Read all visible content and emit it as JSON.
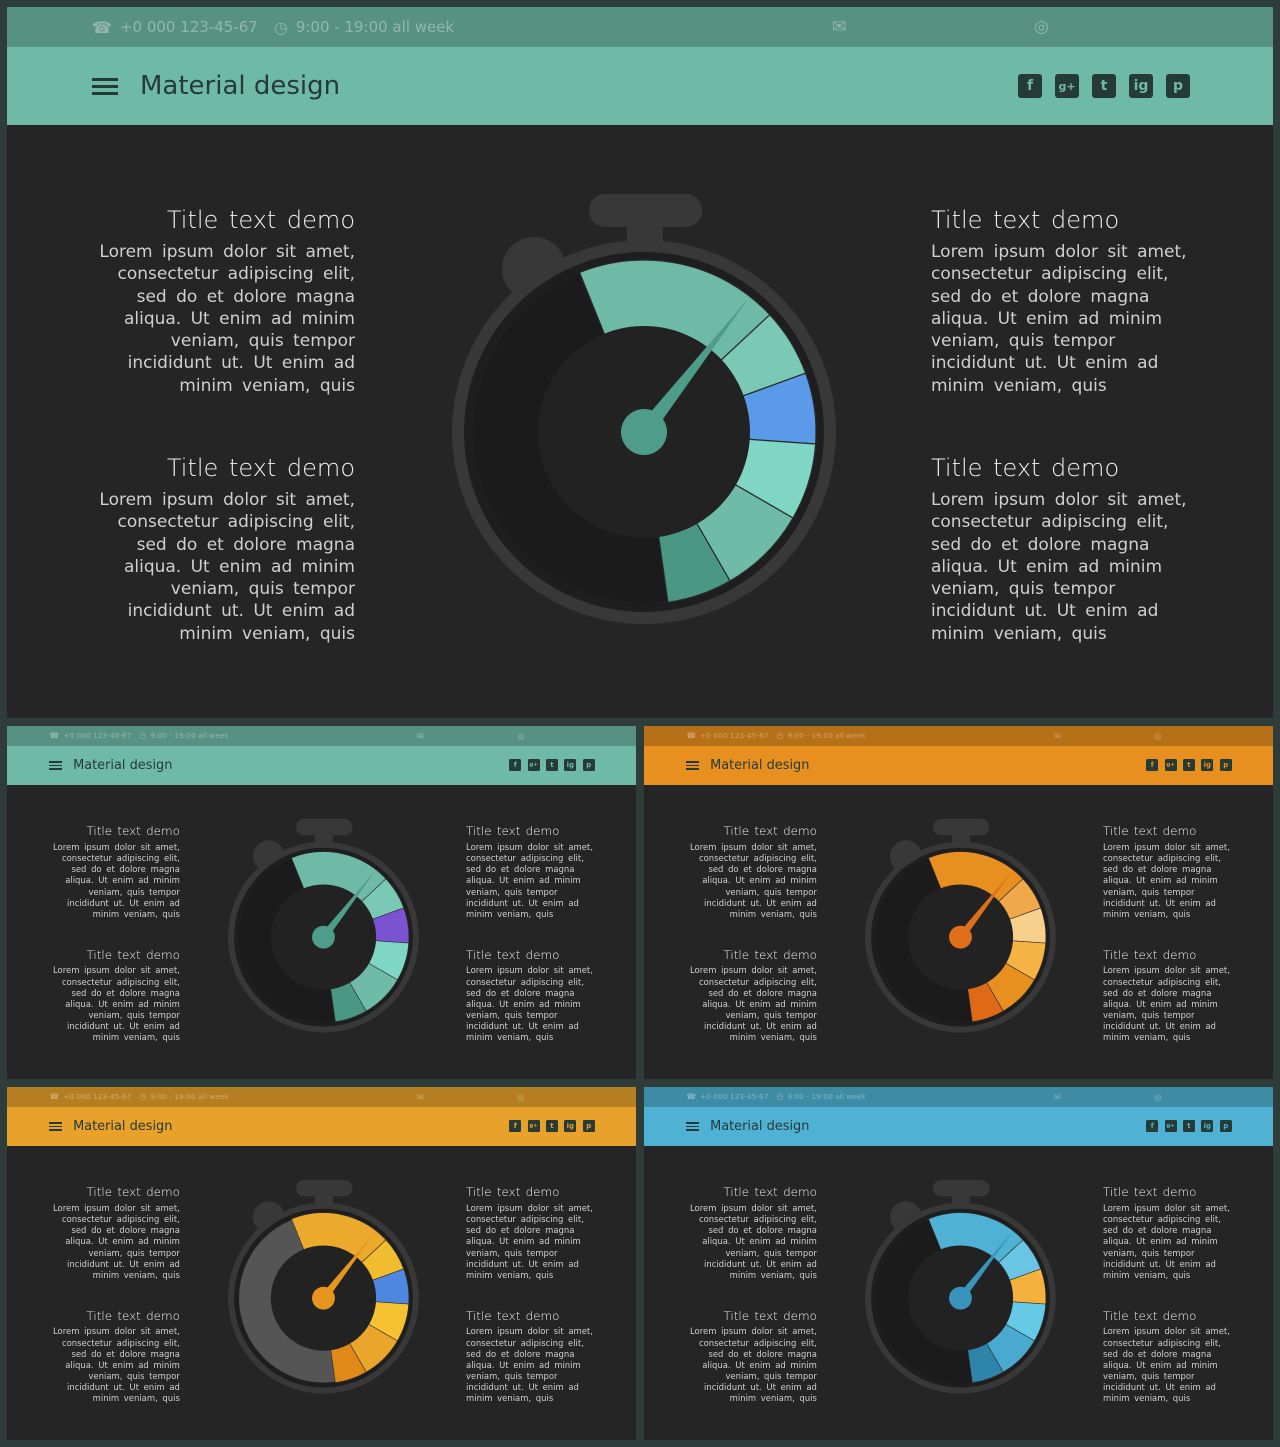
{
  "slides": [
    {
      "id": "main",
      "accent": "#6fbaa7",
      "accent_dark": "#4e9d8b",
      "palette": [
        "#6fbaa7",
        "#7ac9b5",
        "#5b9ae8",
        "#80d6c5",
        "#6ebca7",
        "#4a9884"
      ],
      "inner_ring": "#1b1b1b"
    },
    {
      "id": "teal",
      "accent": "#6fbaa7",
      "accent_dark": "#4e9d8b",
      "palette": [
        "#6fbaa7",
        "#7ac9b5",
        "#7b52d1",
        "#80d6c5",
        "#6ebca7",
        "#4a9884"
      ],
      "inner_ring": "#1b1b1b"
    },
    {
      "id": "orange",
      "accent": "#e8901f",
      "accent_dark": "#e06f1c",
      "palette": [
        "#e8901f",
        "#f0a84b",
        "#f7d08e",
        "#f5b245",
        "#e8901f",
        "#de6a18"
      ],
      "inner_ring": "#1b1b1b"
    },
    {
      "id": "yellow",
      "accent": "#e8a12a",
      "accent_dark": "#e8951f",
      "palette": [
        "#ecaa2c",
        "#f2bc2f",
        "#4f86e0",
        "#f6c232",
        "#eaa62a",
        "#e08818"
      ],
      "inner_ring": "#555555"
    },
    {
      "id": "blue",
      "accent": "#4fb2d5",
      "accent_dark": "#3a93bb",
      "palette": [
        "#4fb2d5",
        "#6ac4e3",
        "#f4b13c",
        "#66c9e6",
        "#4aa9cf",
        "#2f84aa"
      ],
      "inner_ring": "#1b1b1b"
    }
  ],
  "topbar": {
    "phone": "+0 000 123-45-67",
    "hours": "9:00 - 19:00 all week"
  },
  "header": {
    "title": "Material design"
  },
  "social": [
    "f",
    "g+",
    "t",
    "ig",
    "p"
  ],
  "icons": {
    "phone": "phone-icon",
    "clock": "clock-icon",
    "mail": "mail-icon",
    "globe": "globe-icon",
    "menu": "hamburger-icon"
  },
  "blocks": [
    {
      "title": "Title text demo",
      "lines": [
        "Lorem ipsum dolor sit amet,",
        "consectetur adipiscing elit,",
        "sed do et dolore magna",
        "aliqua. Ut enim ad minim",
        "veniam, quis tempor",
        "incididunt ut. Ut enim ad",
        "minim veniam, quis"
      ]
    }
  ]
}
